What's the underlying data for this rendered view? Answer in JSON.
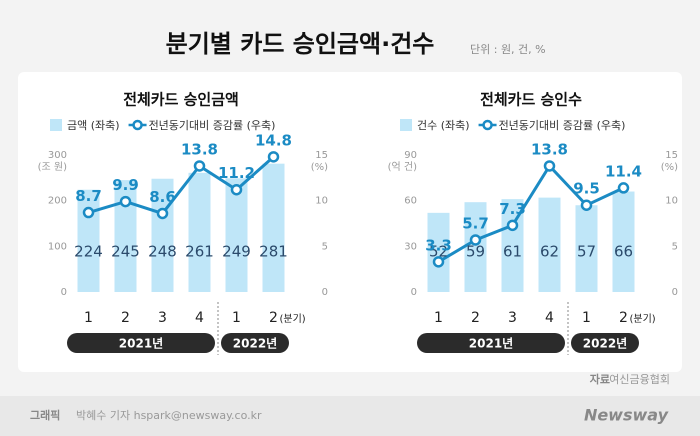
{
  "title": "분기별 카드 승인금액·건수",
  "unit": "단위 : 원, 건, %",
  "chart_data": [
    {
      "type": "bar",
      "title": "전체카드 승인금액",
      "categories": [
        "1",
        "2",
        "3",
        "4",
        "1",
        "2"
      ],
      "x_groups": [
        "2021년",
        "2022년"
      ],
      "xlabel": "(분기)",
      "ylabel": "(조 원)",
      "y2label": "(%)",
      "ylim": [
        0,
        300
      ],
      "yticks": [
        0,
        100,
        200,
        300
      ],
      "y2lim": [
        0,
        15
      ],
      "y2ticks": [
        0,
        5,
        10,
        15
      ],
      "series": [
        {
          "name": "금액 (좌축)",
          "type": "bar",
          "color": "#bfe6f8",
          "values": [
            224,
            245,
            248,
            261,
            249,
            281
          ]
        },
        {
          "name": "전년동기대비 증감률 (우축)",
          "type": "line",
          "axis": "y2",
          "color": "#1b8bc4",
          "values": [
            8.7,
            9.9,
            8.6,
            13.8,
            11.2,
            14.8
          ]
        }
      ]
    },
    {
      "type": "bar",
      "title": "전체카드 승인수",
      "categories": [
        "1",
        "2",
        "3",
        "4",
        "1",
        "2"
      ],
      "x_groups": [
        "2021년",
        "2022년"
      ],
      "xlabel": "(분기)",
      "ylabel": "(억 건)",
      "y2label": "(%)",
      "ylim": [
        0,
        90
      ],
      "yticks": [
        0,
        30,
        60,
        90
      ],
      "y2lim": [
        0,
        15
      ],
      "y2ticks": [
        0,
        5,
        10,
        15
      ],
      "series": [
        {
          "name": "건수 (좌축)",
          "type": "bar",
          "color": "#bfe6f8",
          "values": [
            52,
            59,
            61,
            62,
            57,
            66
          ]
        },
        {
          "name": "전년동기대비 증감률 (우축)",
          "type": "line",
          "axis": "y2",
          "color": "#1b8bc4",
          "values": [
            3.3,
            5.7,
            7.3,
            13.8,
            9.5,
            11.4
          ]
        }
      ]
    }
  ],
  "source": {
    "label": "자료",
    "text": "여신금융협회"
  },
  "credit": {
    "label": "그래픽",
    "text": "박혜수 기자 hspark@newsway.co.kr"
  },
  "logo": "Newsway"
}
